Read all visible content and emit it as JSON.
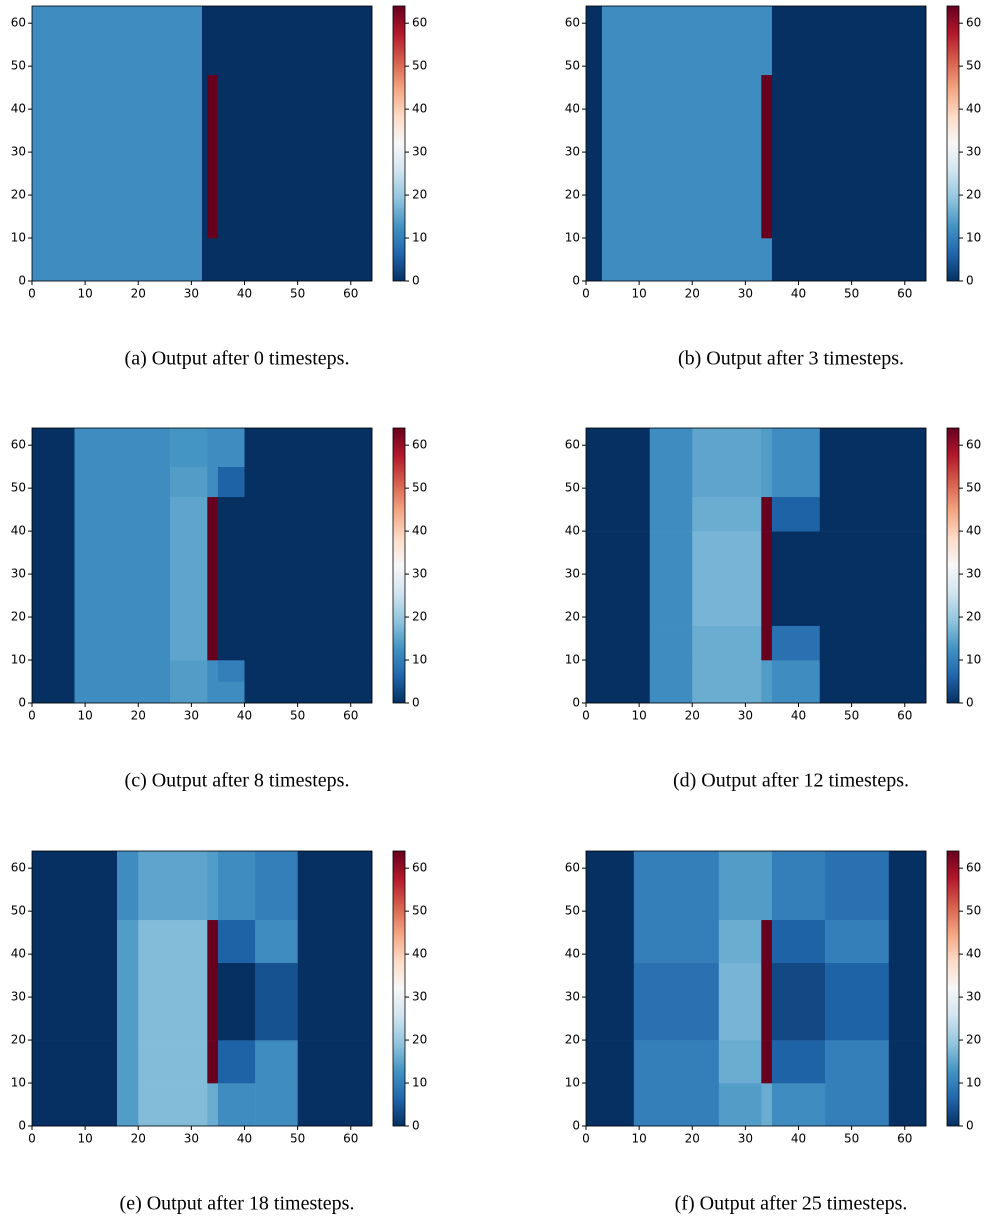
{
  "chart_data": [
    {
      "type": "heatmap",
      "caption": "(a) Output after 0 timesteps.",
      "x_edges": [
        0,
        32,
        33,
        35,
        64
      ],
      "y_edges": [
        0,
        10,
        48,
        64
      ],
      "values": [
        [
          12,
          0,
          0,
          0
        ],
        [
          12,
          0,
          64,
          0
        ],
        [
          12,
          0,
          0,
          0
        ]
      ],
      "xlim": [
        0,
        64
      ],
      "ylim": [
        0,
        64
      ],
      "xticks": [
        0,
        10,
        20,
        30,
        40,
        50,
        60
      ],
      "yticks": [
        0,
        10,
        20,
        30,
        40,
        50,
        60
      ],
      "clim": [
        0,
        64
      ],
      "cticks": [
        0,
        10,
        20,
        30,
        40,
        50,
        60
      ],
      "colormap": [
        "#053061",
        "#2166ac",
        "#4393c3",
        "#92c5de",
        "#d1e5f0",
        "#f7f7f7",
        "#fddbc7",
        "#f4a582",
        "#d6604d",
        "#b2182b",
        "#67001f"
      ]
    },
    {
      "type": "heatmap",
      "caption": "(b) Output after 3 timesteps.",
      "x_edges": [
        0,
        3,
        33,
        35,
        64
      ],
      "y_edges": [
        0,
        10,
        48,
        64
      ],
      "values": [
        [
          0,
          12,
          12,
          0
        ],
        [
          0,
          12,
          64,
          0
        ],
        [
          0,
          12,
          12,
          0
        ]
      ],
      "xlim": [
        0,
        64
      ],
      "ylim": [
        0,
        64
      ],
      "xticks": [
        0,
        10,
        20,
        30,
        40,
        50,
        60
      ],
      "yticks": [
        0,
        10,
        20,
        30,
        40,
        50,
        60
      ],
      "clim": [
        0,
        64
      ],
      "cticks": [
        0,
        10,
        20,
        30,
        40,
        50,
        60
      ],
      "colormap": [
        "#053061",
        "#2166ac",
        "#4393c3",
        "#92c5de",
        "#d1e5f0",
        "#f7f7f7",
        "#fddbc7",
        "#f4a582",
        "#d6604d",
        "#b2182b",
        "#67001f"
      ]
    },
    {
      "type": "heatmap",
      "caption": "(c) Output after 8 timesteps.",
      "x_edges": [
        0,
        8,
        26,
        33,
        35,
        40,
        64
      ],
      "y_edges": [
        0,
        5,
        10,
        48,
        55,
        64
      ],
      "values": [
        [
          0,
          12,
          14,
          12,
          12,
          0
        ],
        [
          0,
          12,
          14,
          12,
          10,
          0
        ],
        [
          0,
          12,
          15,
          64,
          0,
          0
        ],
        [
          0,
          12,
          14,
          12,
          6,
          0
        ],
        [
          0,
          12,
          13,
          12,
          12,
          0
        ]
      ],
      "xlim": [
        0,
        64
      ],
      "ylim": [
        0,
        64
      ],
      "xticks": [
        0,
        10,
        20,
        30,
        40,
        50,
        60
      ],
      "yticks": [
        0,
        10,
        20,
        30,
        40,
        50,
        60
      ],
      "clim": [
        0,
        64
      ],
      "cticks": [
        0,
        10,
        20,
        30,
        40,
        50,
        60
      ],
      "colormap": [
        "#053061",
        "#2166ac",
        "#4393c3",
        "#92c5de",
        "#d1e5f0",
        "#f7f7f7",
        "#fddbc7",
        "#f4a582",
        "#d6604d",
        "#b2182b",
        "#67001f"
      ]
    },
    {
      "type": "heatmap",
      "caption": "(d) Output after 12 timesteps.",
      "x_edges": [
        0,
        12,
        20,
        33,
        35,
        44,
        64
      ],
      "y_edges": [
        0,
        10,
        18,
        40,
        48,
        64
      ],
      "values": [
        [
          0,
          12,
          16,
          14,
          12,
          0
        ],
        [
          0,
          12,
          16,
          64,
          8,
          0
        ],
        [
          0,
          12,
          17,
          64,
          0,
          0
        ],
        [
          0,
          12,
          16,
          64,
          6,
          0
        ],
        [
          0,
          12,
          15,
          14,
          12,
          0
        ]
      ],
      "xlim": [
        0,
        64
      ],
      "ylim": [
        0,
        64
      ],
      "xticks": [
        0,
        10,
        20,
        30,
        40,
        50,
        60
      ],
      "yticks": [
        0,
        10,
        20,
        30,
        40,
        50,
        60
      ],
      "clim": [
        0,
        64
      ],
      "cticks": [
        0,
        10,
        20,
        30,
        40,
        50,
        60
      ],
      "colormap": [
        "#053061",
        "#2166ac",
        "#4393c3",
        "#92c5de",
        "#d1e5f0",
        "#f7f7f7",
        "#fddbc7",
        "#f4a582",
        "#d6604d",
        "#b2182b",
        "#67001f"
      ]
    },
    {
      "type": "heatmap",
      "caption": "(e) Output after 18 timesteps.",
      "x_edges": [
        0,
        16,
        20,
        33,
        35,
        42,
        50,
        64
      ],
      "y_edges": [
        0,
        10,
        20,
        38,
        48,
        64
      ],
      "values": [
        [
          0,
          14,
          18,
          16,
          12,
          12,
          0
        ],
        [
          0,
          14,
          18,
          64,
          6,
          12,
          0
        ],
        [
          0,
          14,
          18,
          64,
          0,
          4,
          0
        ],
        [
          0,
          14,
          18,
          64,
          6,
          12,
          0
        ],
        [
          0,
          12,
          15,
          14,
          12,
          10,
          0
        ]
      ],
      "xlim": [
        0,
        64
      ],
      "ylim": [
        0,
        64
      ],
      "xticks": [
        0,
        10,
        20,
        30,
        40,
        50,
        60
      ],
      "yticks": [
        0,
        10,
        20,
        30,
        40,
        50,
        60
      ],
      "clim": [
        0,
        64
      ],
      "cticks": [
        0,
        10,
        20,
        30,
        40,
        50,
        60
      ],
      "colormap": [
        "#053061",
        "#2166ac",
        "#4393c3",
        "#92c5de",
        "#d1e5f0",
        "#f7f7f7",
        "#fddbc7",
        "#f4a582",
        "#d6604d",
        "#b2182b",
        "#67001f"
      ]
    },
    {
      "type": "heatmap",
      "caption": "(f) Output after 25 timesteps.",
      "x_edges": [
        0,
        9,
        25,
        33,
        35,
        45,
        57,
        64
      ],
      "y_edges": [
        0,
        10,
        20,
        38,
        48,
        64
      ],
      "values": [
        [
          0,
          10,
          14,
          16,
          12,
          10,
          0
        ],
        [
          0,
          10,
          16,
          64,
          6,
          10,
          0
        ],
        [
          0,
          8,
          17,
          64,
          3,
          6,
          0
        ],
        [
          0,
          10,
          16,
          64,
          6,
          10,
          0
        ],
        [
          0,
          10,
          14,
          14,
          10,
          8,
          0
        ]
      ],
      "xlim": [
        0,
        64
      ],
      "ylim": [
        0,
        64
      ],
      "xticks": [
        0,
        10,
        20,
        30,
        40,
        50,
        60
      ],
      "yticks": [
        0,
        10,
        20,
        30,
        40,
        50,
        60
      ],
      "clim": [
        0,
        64
      ],
      "cticks": [
        0,
        10,
        20,
        30,
        40,
        50,
        60
      ],
      "colormap": [
        "#053061",
        "#2166ac",
        "#4393c3",
        "#92c5de",
        "#d1e5f0",
        "#f7f7f7",
        "#fddbc7",
        "#f4a582",
        "#d6604d",
        "#b2182b",
        "#67001f"
      ]
    }
  ]
}
